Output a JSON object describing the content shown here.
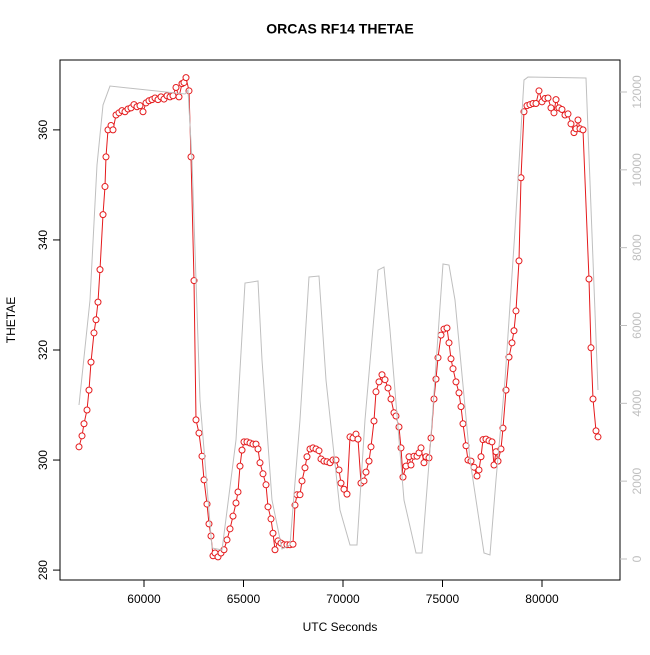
{
  "chart_data": {
    "type": "line",
    "title": "ORCAS RF14 THETAE",
    "x_label": "UTC Seconds",
    "y_label": "THETAE",
    "xlim": [
      55779,
      83920
    ],
    "xticks": [
      60000,
      65000,
      70000,
      75000,
      80000
    ],
    "ylim": [
      278.2,
      372.7
    ],
    "yticks": [
      280,
      300,
      320,
      340,
      360
    ],
    "y2lim": [
      -540,
      12822
    ],
    "y2ticks": [
      0,
      2000,
      4000,
      6000,
      8000,
      10000,
      12000
    ],
    "series": [
      {
        "color": "#e41a1c",
        "axis": "y",
        "markers": true,
        "x": [
          56734,
          56885,
          56985,
          57136,
          57236,
          57337,
          57487,
          57588,
          57688,
          57789,
          57940,
          58040,
          58090,
          58191,
          58342,
          58442,
          58593,
          58744,
          58894,
          59045,
          59196,
          59347,
          59497,
          59648,
          59799,
          59950,
          60101,
          60251,
          60402,
          60553,
          60704,
          60854,
          61005,
          61156,
          61307,
          61457,
          61608,
          61759,
          61910,
          62010,
          62111,
          62261,
          62362,
          62513,
          62613,
          62764,
          62915,
          63015,
          63166,
          63266,
          63367,
          63467,
          63568,
          63719,
          63869,
          64020,
          64171,
          64322,
          64472,
          64623,
          64724,
          64824,
          64925,
          65025,
          65176,
          65327,
          65477,
          65628,
          65729,
          65829,
          65980,
          66131,
          66231,
          66382,
          66482,
          66583,
          66734,
          66884,
          67035,
          67186,
          67337,
          67487,
          67588,
          67688,
          67839,
          67940,
          68090,
          68191,
          68342,
          68492,
          68643,
          68794,
          68894,
          69045,
          69196,
          69347,
          69497,
          69648,
          69799,
          69899,
          70050,
          70201,
          70352,
          70503,
          70653,
          70754,
          70905,
          71055,
          71156,
          71307,
          71407,
          71558,
          71658,
          71809,
          71960,
          72111,
          72261,
          72412,
          72563,
          72663,
          72814,
          72915,
          73015,
          73166,
          73317,
          73417,
          73568,
          73719,
          73819,
          73920,
          74070,
          74171,
          74322,
          74422,
          74573,
          74673,
          74774,
          74925,
          75075,
          75226,
          75327,
          75427,
          75528,
          75678,
          75829,
          75930,
          76030,
          76181,
          76281,
          76432,
          76583,
          76734,
          76834,
          76935,
          77035,
          77186,
          77337,
          77487,
          77588,
          77688,
          77789,
          77940,
          78040,
          78191,
          78342,
          78492,
          78593,
          78693,
          78844,
          78945,
          79095,
          79246,
          79397,
          79548,
          79698,
          79849,
          80000,
          80151,
          80302,
          80452,
          80603,
          80704,
          80854,
          81005,
          81156,
          81307,
          81457,
          81608,
          81709,
          81809,
          81910,
          82060,
          82362,
          82462,
          82563,
          82714,
          82814
        ],
        "values": [
          302.4,
          304.4,
          306.6,
          309.1,
          312.7,
          317.8,
          323.1,
          325.5,
          328.7,
          334.6,
          344.6,
          349.7,
          355.1,
          360,
          360.8,
          360,
          362.7,
          363.1,
          363.5,
          363.3,
          363.8,
          364,
          364.6,
          364.2,
          364.4,
          363.3,
          364.9,
          365.3,
          365.5,
          365.8,
          365.5,
          366,
          365.6,
          366.2,
          366,
          366.2,
          367.7,
          366,
          368.4,
          368.6,
          369.5,
          367.1,
          355.1,
          332.6,
          307.3,
          304.9,
          300.7,
          296.4,
          292,
          288.4,
          286.2,
          282.6,
          283.1,
          282.4,
          283.1,
          283.7,
          285.5,
          287.5,
          289.8,
          292.2,
          294.2,
          298.9,
          301.8,
          303.3,
          303.3,
          303.1,
          302.9,
          302.9,
          302,
          299.5,
          297.5,
          295.5,
          291.5,
          289.3,
          286.7,
          283.7,
          285.3,
          284.9,
          284.6,
          284.6,
          284.6,
          284.7,
          291.8,
          293.7,
          293.7,
          296.2,
          298.6,
          300.6,
          302,
          302.2,
          302,
          301.7,
          300.2,
          299.8,
          299.7,
          299.5,
          300,
          300,
          298.2,
          295.8,
          294.7,
          293.8,
          304.2,
          304,
          304.7,
          303.8,
          295.8,
          296.2,
          297.8,
          299.8,
          302.4,
          307.1,
          312.4,
          314.2,
          315.5,
          314.6,
          313.1,
          311.1,
          308.6,
          308,
          306,
          302.2,
          296.9,
          298.9,
          300.6,
          299.1,
          300.7,
          300.7,
          301.3,
          302.2,
          299.5,
          300.6,
          300.4,
          304,
          311.1,
          314.7,
          318.6,
          322.7,
          323.8,
          324,
          321.3,
          318.4,
          316.6,
          314.2,
          312.2,
          309.7,
          306.6,
          302.6,
          300,
          299.8,
          298.7,
          297.1,
          298.2,
          300.6,
          303.7,
          303.8,
          303.5,
          303.3,
          299.1,
          301.5,
          299.8,
          302,
          305.8,
          312.7,
          318.7,
          321.3,
          323.5,
          327.1,
          336.2,
          351.3,
          363.3,
          364.4,
          364.6,
          364.8,
          364.8,
          367.1,
          365.1,
          365.7,
          365.8,
          364,
          363.1,
          365.5,
          364,
          363.7,
          362.7,
          362.9,
          361.1,
          359.5,
          360.2,
          361.8,
          360.2,
          360,
          332.9,
          320.4,
          311.1,
          305.3,
          304.2
        ]
      },
      {
        "color": "#bfbfbf",
        "axis": "y2",
        "markers": false,
        "x": [
          56734,
          57287,
          57638,
          57940,
          58291,
          62060,
          62211,
          62412,
          62814,
          63417,
          63920,
          64623,
          65075,
          65729,
          65930,
          66432,
          66935,
          67337,
          67839,
          68291,
          68794,
          69146,
          69849,
          70352,
          70703,
          71105,
          71759,
          72060,
          72362,
          73065,
          73669,
          73970,
          74372,
          75025,
          75327,
          75628,
          76382,
          77086,
          77386,
          77688,
          78141,
          78643,
          79095,
          79296,
          82211,
          82814
        ],
        "values": [
          3957,
          6655,
          10123,
          11665,
          12153,
          11948,
          12050,
          10252,
          4085,
          283,
          231,
          3058,
          7091,
          7143,
          5113,
          1516,
          257,
          360,
          3571,
          7246,
          7271,
          4599,
          1259,
          360,
          360,
          3571,
          7425,
          7503,
          5884,
          1516,
          154,
          154,
          2801,
          7580,
          7554,
          6655,
          2544,
          154,
          103,
          2030,
          4599,
          8453,
          12307,
          12384,
          12359,
          4342
        ]
      }
    ]
  }
}
